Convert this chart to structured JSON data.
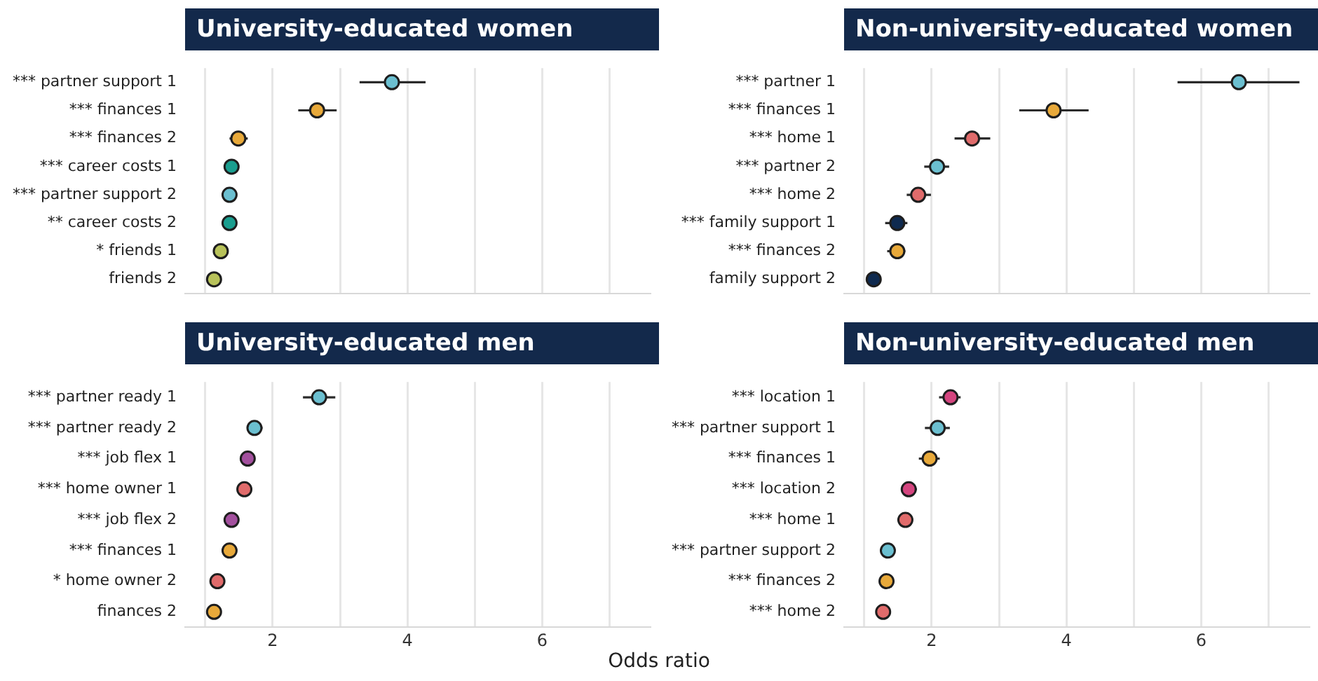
{
  "chart_data": [
    {
      "type": "scatter",
      "orientation": "horizontal",
      "title": "University-educated women",
      "marker": "circle",
      "grid": "x",
      "tick_labels": "y",
      "categories": [
        "*** partner support 1",
        "*** finances 1",
        "*** finances 2",
        "*** career costs 1",
        "*** partner support 2",
        "** career costs 2",
        "* friends 1",
        "friends 2"
      ],
      "values": [
        3.77,
        2.66,
        1.49,
        1.39,
        1.36,
        1.36,
        1.23,
        1.13
      ],
      "errors": [
        [
          3.29,
          4.27
        ],
        [
          2.38,
          2.95
        ],
        [
          1.36,
          1.63
        ],
        null,
        null,
        null,
        null,
        null
      ],
      "colors": [
        "#6bbfd0",
        "#e8a93a",
        "#e8a93a",
        "#1a9e8f",
        "#6bbfd0",
        "#1a9e8f",
        "#b8c25a",
        "#b8c25a"
      ],
      "xlim": [
        0.7,
        7.6
      ],
      "xticks": [
        {
          "value": 1,
          "label": null
        },
        2,
        {
          "value": 3,
          "label": null
        },
        4,
        {
          "value": 5,
          "label": null
        },
        6,
        {
          "value": 7,
          "label": null
        }
      ]
    },
    {
      "type": "scatter",
      "orientation": "horizontal",
      "title": "Non-university-educated women",
      "marker": "circle",
      "grid": "x",
      "tick_labels": "y",
      "categories": [
        "*** partner 1",
        "*** finances 1",
        "*** home 1",
        "*** partner 2",
        "*** home 2",
        "*** family support 1",
        "*** finances 2",
        "family support 2"
      ],
      "values": [
        6.56,
        3.81,
        2.6,
        2.08,
        1.8,
        1.49,
        1.49,
        1.14
      ],
      "errors": [
        [
          5.65,
          7.46
        ],
        [
          3.3,
          4.33
        ],
        [
          2.34,
          2.87
        ],
        [
          1.89,
          2.26
        ],
        [
          1.63,
          1.99
        ],
        [
          1.31,
          1.64
        ],
        [
          1.34,
          1.61
        ],
        null
      ],
      "colors": [
        "#6bbfd0",
        "#e8a93a",
        "#e06b6b",
        "#6bbfd0",
        "#e06b6b",
        "#0f2a4f",
        "#e8a93a",
        "#0f2a4f"
      ],
      "xlim": [
        0.7,
        7.6
      ],
      "xticks": [
        {
          "value": 1,
          "label": null
        },
        2,
        {
          "value": 3,
          "label": null
        },
        4,
        {
          "value": 5,
          "label": null
        },
        6,
        {
          "value": 7,
          "label": null
        }
      ]
    },
    {
      "type": "scatter",
      "orientation": "horizontal",
      "title": "University-educated men",
      "marker": "circle",
      "grid": "x",
      "categories": [
        "*** partner ready 1",
        "*** partner ready 2",
        "*** job flex 1",
        "*** home owner 1",
        "*** job flex 2",
        "*** finances 1",
        "* home owner 2",
        "finances 2"
      ],
      "values": [
        2.69,
        1.73,
        1.63,
        1.58,
        1.39,
        1.36,
        1.18,
        1.13
      ],
      "errors": [
        [
          2.45,
          2.93
        ],
        [
          1.63,
          1.85
        ],
        [
          1.52,
          1.73
        ],
        [
          1.49,
          1.69
        ],
        null,
        null,
        null,
        null
      ],
      "colors": [
        "#6bbfd0",
        "#6bbfd0",
        "#a3509e",
        "#e06b6b",
        "#a3509e",
        "#e8a93a",
        "#e06b6b",
        "#e8a93a"
      ],
      "xlim": [
        0.7,
        7.6
      ],
      "xticks": [
        {
          "value": 1,
          "label": null
        },
        2,
        {
          "value": 3,
          "label": null
        },
        4,
        {
          "value": 5,
          "label": null
        },
        6,
        {
          "value": 7,
          "label": null
        }
      ]
    },
    {
      "type": "scatter",
      "orientation": "horizontal",
      "title": "Non-university-educated men",
      "xlabel": "Odds ratio",
      "marker": "circle",
      "grid": "x",
      "categories": [
        "*** location 1",
        "*** partner support 1",
        "*** finances 1",
        "*** location 2",
        "*** home 1",
        "*** partner support 2",
        "*** finances 2",
        "*** home 2"
      ],
      "values": [
        2.28,
        2.09,
        1.97,
        1.66,
        1.61,
        1.35,
        1.33,
        1.28
      ],
      "errors": [
        [
          2.11,
          2.43
        ],
        [
          1.9,
          2.27
        ],
        [
          1.81,
          2.12
        ],
        [
          1.55,
          1.78
        ],
        [
          1.49,
          1.72
        ],
        null,
        null,
        null
      ],
      "colors": [
        "#d4457f",
        "#6bbfd0",
        "#e8a93a",
        "#d4457f",
        "#e06b6b",
        "#6bbfd0",
        "#e8a93a",
        "#e06b6b"
      ],
      "xlim": [
        0.7,
        7.6
      ],
      "xticks": [
        {
          "value": 1,
          "label": null
        },
        2,
        {
          "value": 3,
          "label": null
        },
        4,
        {
          "value": 5,
          "label": null
        },
        6,
        {
          "value": 7,
          "label": null
        }
      ]
    }
  ]
}
